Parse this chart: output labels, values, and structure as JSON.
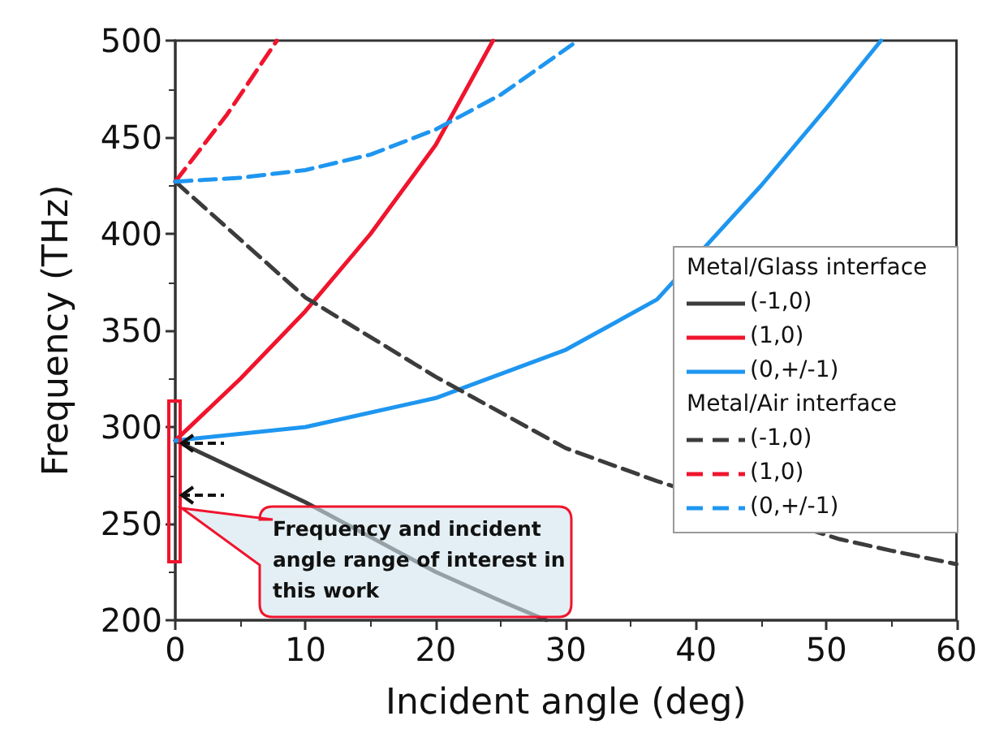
{
  "chart_data": {
    "type": "line",
    "xlabel": "Incident angle (deg)",
    "ylabel": "Frequency (THz)",
    "xlim": [
      0,
      60
    ],
    "xticks": [
      0,
      10,
      20,
      30,
      40,
      50,
      60
    ],
    "ylim": [
      200,
      500
    ],
    "yticks": [
      200,
      250,
      300,
      350,
      400,
      450,
      500
    ],
    "grid": false,
    "legend": "right",
    "annotations": [
      "Metal/Glass interface",
      "Metal/Air interface",
      "Frequency and incident angle range of interest in this work"
    ],
    "series": [
      {
        "name": "(-1,0)",
        "color": "#3c3c3c",
        "line_style": "solid",
        "x": [
          0,
          5,
          10,
          15,
          20,
          25,
          28.5
        ],
        "values": [
          293,
          277,
          261,
          243,
          225,
          210,
          200
        ]
      },
      {
        "name": "(1,0)",
        "color": "#f0142d",
        "line_style": "solid",
        "x": [
          0,
          5,
          10,
          15,
          20,
          24.4
        ],
        "values": [
          293,
          325,
          360,
          400,
          446,
          500
        ]
      },
      {
        "name": "(0,+/-1)",
        "color": "#1e96f0",
        "line_style": "solid",
        "x": [
          0,
          10,
          20,
          30,
          37,
          45,
          50,
          54.2
        ],
        "values": [
          293,
          300,
          315,
          340,
          366,
          425,
          465,
          500
        ]
      },
      {
        "name": "(-1,0)",
        "color": "#3c3c3c",
        "line_style": "dashed",
        "x": [
          0,
          10,
          20,
          30,
          37,
          51,
          55,
          60
        ],
        "values": [
          427,
          367,
          326,
          289,
          272,
          242,
          236,
          229
        ]
      },
      {
        "name": "(1,0)",
        "color": "#f0142d",
        "line_style": "dashed",
        "x": [
          0,
          4,
          7.8
        ],
        "values": [
          427,
          462,
          500
        ]
      },
      {
        "name": "(0,+/-1)",
        "color": "#1e96f0",
        "line_style": "dashed",
        "x": [
          0,
          5,
          10,
          15,
          20,
          25,
          30.5
        ],
        "values": [
          427,
          429,
          433,
          441,
          454,
          472,
          498
        ]
      }
    ]
  }
}
